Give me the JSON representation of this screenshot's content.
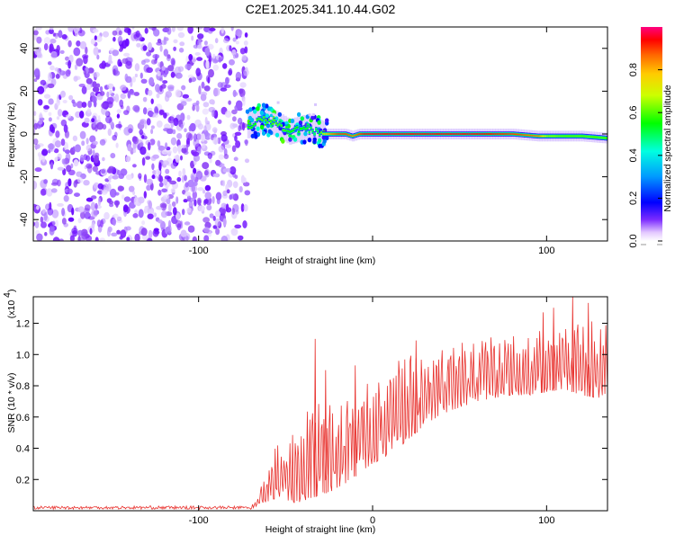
{
  "title": "C2E1.2025.341.10.44.G02",
  "colors": {
    "snr_line": "#e8322e",
    "frame": "#000000",
    "background": "#ffffff"
  },
  "chart_data": [
    {
      "type": "heatmap",
      "name": "spectrogram",
      "xlabel": "Height of straight line (km)",
      "ylabel": "Frequency (Hz)",
      "xlim": [
        -195,
        135
      ],
      "ylim": [
        -50,
        50
      ],
      "xticks": [
        -100,
        0,
        100
      ],
      "xtick_labels": [
        "-100",
        "",
        "100"
      ],
      "yticks": [
        -40,
        -20,
        0,
        20,
        40
      ],
      "ytick_labels": [
        "-40",
        "-20",
        "0",
        "20",
        "40"
      ],
      "noise_region_x": [
        -195,
        -72
      ],
      "signal_track": {
        "x": [
          -72,
          -68,
          -64,
          -60,
          -56,
          -52,
          -48,
          -44,
          -40,
          -36,
          -32,
          -28,
          -24,
          -20,
          -16,
          -12,
          -8,
          -4,
          0,
          20,
          40,
          60,
          80,
          95,
          100,
          110,
          120,
          135
        ],
        "y": [
          4,
          5,
          7,
          6,
          5,
          3,
          1,
          2,
          3,
          2,
          1,
          0,
          0,
          0,
          0,
          -1,
          0,
          0,
          0,
          0,
          0,
          0,
          0,
          -1,
          -1,
          -1,
          -1,
          -2
        ],
        "amplitude": [
          0.55,
          0.55,
          0.6,
          0.6,
          0.6,
          0.6,
          0.55,
          0.55,
          0.55,
          0.5,
          0.5,
          0.75,
          0.85,
          0.9,
          0.9,
          0.85,
          0.9,
          0.95,
          0.95,
          0.95,
          0.95,
          0.95,
          0.9,
          0.85,
          0.65,
          0.6,
          0.6,
          0.6
        ]
      },
      "colorbar": {
        "label": "Normalized spectral amplitude",
        "ticks": [
          "0.0",
          "0.2",
          "0.4",
          "0.6",
          "0.8"
        ],
        "tick_values": [
          0,
          0.2,
          0.4,
          0.6,
          0.8
        ],
        "range": [
          0,
          1
        ]
      }
    },
    {
      "type": "line",
      "name": "snr",
      "xlabel": "Height of straight line (km)",
      "ylabel": "SNR (10 * v/v)",
      "y_scale_note": "(x10",
      "y_scale_exp": "4",
      "xlim": [
        -195,
        135
      ],
      "ylim": [
        0,
        1.37
      ],
      "xticks": [
        -100,
        0,
        100
      ],
      "xtick_labels": [
        "-100",
        "0",
        "100"
      ],
      "yticks": [
        0.2,
        0.4,
        0.6,
        0.8,
        1.0,
        1.2
      ],
      "ytick_labels": [
        "0.2",
        "0.4",
        "0.6",
        "0.8",
        "1.0",
        "1.2"
      ],
      "envelope": {
        "x": [
          -195,
          -70,
          -65,
          -60,
          -55,
          -50,
          -45,
          -40,
          -35,
          -30,
          -25,
          -20,
          -15,
          -10,
          -5,
          0,
          5,
          10,
          15,
          20,
          30,
          40,
          50,
          60,
          70,
          80,
          90,
          100,
          110,
          120,
          130,
          135
        ],
        "low": [
          0.01,
          0.01,
          0.04,
          0.06,
          0.08,
          0.07,
          0.05,
          0.06,
          0.08,
          0.1,
          0.12,
          0.14,
          0.18,
          0.22,
          0.26,
          0.3,
          0.33,
          0.36,
          0.4,
          0.45,
          0.55,
          0.62,
          0.66,
          0.7,
          0.72,
          0.74,
          0.74,
          0.76,
          0.78,
          0.74,
          0.72,
          0.76
        ],
        "high": [
          0.03,
          0.03,
          0.12,
          0.3,
          0.45,
          0.5,
          0.52,
          0.6,
          0.85,
          0.75,
          0.68,
          0.7,
          0.72,
          0.75,
          0.8,
          0.85,
          0.9,
          0.95,
          0.97,
          1.0,
          1.05,
          1.07,
          1.08,
          1.1,
          1.12,
          1.14,
          1.16,
          1.18,
          1.2,
          1.25,
          1.22,
          1.2
        ]
      },
      "spikes": [
        [
          -33,
          1.1
        ],
        [
          -27,
          0.9
        ],
        [
          -10,
          0.93
        ],
        [
          25,
          1.09
        ],
        [
          98,
          1.27
        ],
        [
          104,
          1.3
        ],
        [
          115,
          1.37
        ],
        [
          124,
          1.33
        ]
      ]
    }
  ]
}
